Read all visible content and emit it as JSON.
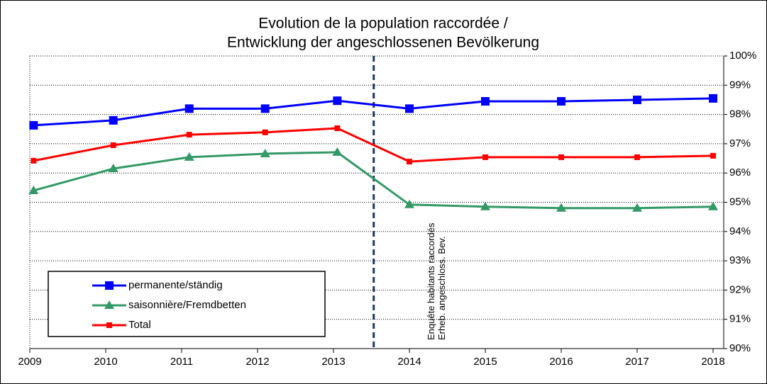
{
  "chart_data": {
    "type": "line",
    "title": [
      "Evolution de la population raccordée /",
      "Entwicklung der angeschlossenen Bevölkerung"
    ],
    "x": [
      2009.05,
      2010.1,
      2011.1,
      2012.1,
      2013.05,
      2014.0,
      2015.0,
      2016.0,
      2017.0,
      2018.0
    ],
    "series": [
      {
        "name": "permanente/ständig",
        "color": "#0000ff",
        "marker": "square",
        "values": [
          97.63,
          97.8,
          98.2,
          98.2,
          98.47,
          98.2,
          98.45,
          98.45,
          98.5,
          98.55
        ]
      },
      {
        "name": "saisonnière/Fremdbetten",
        "color": "#339966",
        "marker": "triangle",
        "values": [
          95.4,
          96.15,
          96.54,
          96.66,
          96.71,
          94.92,
          94.85,
          94.8,
          94.8,
          94.85
        ]
      },
      {
        "name": "Total",
        "color": "#ff0000",
        "marker": "small-square",
        "values": [
          96.42,
          96.95,
          97.31,
          97.39,
          97.53,
          96.39,
          96.54,
          96.54,
          96.54,
          96.59
        ]
      }
    ],
    "xlim": [
      2009,
      2018.14
    ],
    "xticks": [
      2009,
      2010,
      2011,
      2012,
      2013,
      2014,
      2015,
      2016,
      2017,
      2018
    ],
    "ylim": [
      90,
      100
    ],
    "yticks": [
      {
        "value": 90,
        "label": "90%"
      },
      {
        "value": 91,
        "label": "91%"
      },
      {
        "value": 92,
        "label": "92%"
      },
      {
        "value": 93,
        "label": "93%"
      },
      {
        "value": 94,
        "label": "94%"
      },
      {
        "value": 95,
        "label": "95%"
      },
      {
        "value": 96,
        "label": "96%"
      },
      {
        "value": 97,
        "label": "97%"
      },
      {
        "value": 98,
        "label": "98%"
      },
      {
        "value": 99,
        "label": "99%"
      },
      {
        "value": 100,
        "label": "100%"
      }
    ],
    "y_axis_side": "right",
    "grid": true,
    "legend": "lower left",
    "vline": {
      "x": 2013.53,
      "label": [
        "Enquête habitants raccordés",
        "Erheb. angeschloss. Bev."
      ]
    }
  }
}
